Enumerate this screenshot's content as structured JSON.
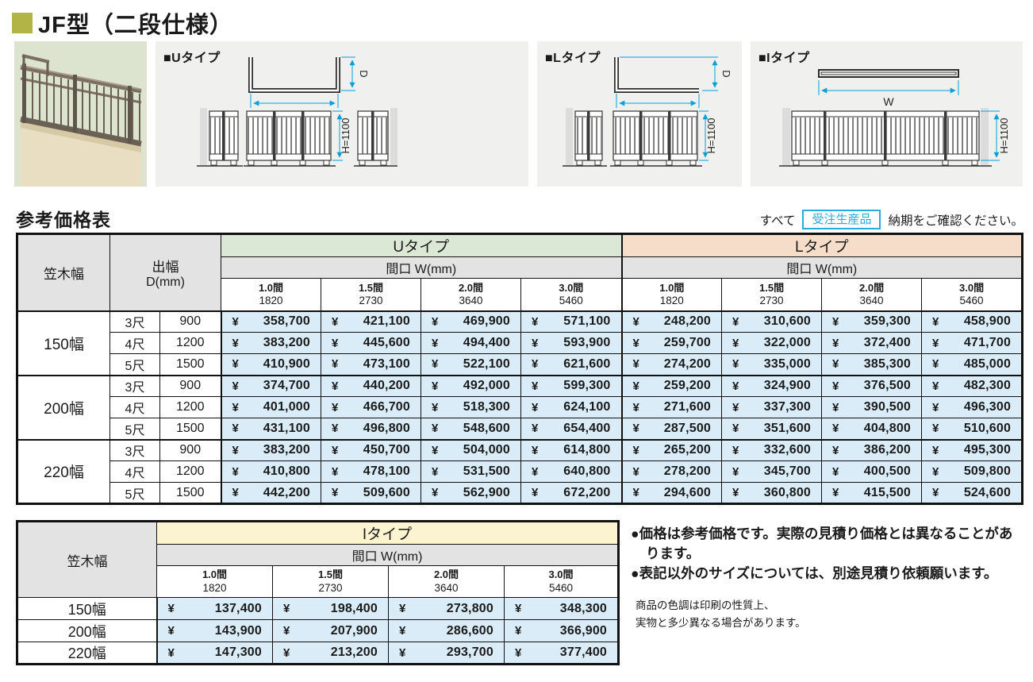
{
  "page": {
    "title": "JF型（二段仕様）"
  },
  "colors": {
    "accent_olive": "#b2b446",
    "badge_cyan": "#29abe2",
    "dimension_cyan": "#00a0dc",
    "u_header_green": "#dce8d6",
    "l_header_peach": "#f6ddc9",
    "i_header_cream": "#fcf3d1",
    "price_cell_blue": "#d9ecf7",
    "header_gray": "#e3e3e3",
    "panel_gray": "#f0f0ef"
  },
  "diagrams": {
    "w_label": "W",
    "d_label": "D",
    "h_label": "H=1100",
    "panels": [
      {
        "label": "■Uタイプ"
      },
      {
        "label": "■Lタイプ"
      },
      {
        "label": "■Iタイプ"
      }
    ]
  },
  "price_section": {
    "heading": "参考価格表",
    "note_prefix": "すべて",
    "badge": "受注生産品",
    "note_suffix": "納期をご確認ください。"
  },
  "main_table": {
    "currency": "¥",
    "header": {
      "kasagi": "笠木幅",
      "debaba_line1": "出幅",
      "debaba_line2": "D(mm)",
      "u_type": "Uタイプ",
      "l_type": "Lタイプ",
      "maguchi": "間口 W(mm)",
      "spans": [
        {
          "ken": "1.0間",
          "mm": "1820"
        },
        {
          "ken": "1.5間",
          "mm": "2730"
        },
        {
          "ken": "2.0間",
          "mm": "3640"
        },
        {
          "ken": "3.0間",
          "mm": "5460"
        }
      ]
    },
    "groups": [
      {
        "label": "150幅",
        "rows": [
          {
            "shaku": "3尺",
            "d": "900",
            "u": [
              "358,700",
              "421,100",
              "469,900",
              "571,100"
            ],
            "l": [
              "248,200",
              "310,600",
              "359,300",
              "458,900"
            ]
          },
          {
            "shaku": "4尺",
            "d": "1200",
            "u": [
              "383,200",
              "445,600",
              "494,400",
              "593,900"
            ],
            "l": [
              "259,700",
              "322,000",
              "372,400",
              "471,700"
            ]
          },
          {
            "shaku": "5尺",
            "d": "1500",
            "u": [
              "410,900",
              "473,100",
              "522,100",
              "621,600"
            ],
            "l": [
              "274,200",
              "335,000",
              "385,300",
              "485,000"
            ]
          }
        ]
      },
      {
        "label": "200幅",
        "rows": [
          {
            "shaku": "3尺",
            "d": "900",
            "u": [
              "374,700",
              "440,200",
              "492,000",
              "599,300"
            ],
            "l": [
              "259,200",
              "324,900",
              "376,500",
              "482,300"
            ]
          },
          {
            "shaku": "4尺",
            "d": "1200",
            "u": [
              "401,000",
              "466,700",
              "518,300",
              "624,100"
            ],
            "l": [
              "271,600",
              "337,300",
              "390,500",
              "496,300"
            ]
          },
          {
            "shaku": "5尺",
            "d": "1500",
            "u": [
              "431,100",
              "496,800",
              "548,600",
              "654,400"
            ],
            "l": [
              "287,500",
              "351,600",
              "404,800",
              "510,600"
            ]
          }
        ]
      },
      {
        "label": "220幅",
        "rows": [
          {
            "shaku": "3尺",
            "d": "900",
            "u": [
              "383,200",
              "450,700",
              "504,000",
              "614,800"
            ],
            "l": [
              "265,200",
              "332,600",
              "386,200",
              "495,300"
            ]
          },
          {
            "shaku": "4尺",
            "d": "1200",
            "u": [
              "410,800",
              "478,100",
              "531,500",
              "640,800"
            ],
            "l": [
              "278,200",
              "345,700",
              "400,500",
              "509,800"
            ]
          },
          {
            "shaku": "5尺",
            "d": "1500",
            "u": [
              "442,200",
              "509,600",
              "562,900",
              "672,200"
            ],
            "l": [
              "294,600",
              "360,800",
              "415,500",
              "524,600"
            ]
          }
        ]
      }
    ]
  },
  "i_table": {
    "header": {
      "kasagi": "笠木幅",
      "i_type": "Iタイプ",
      "maguchi": "間口 W(mm)",
      "spans": [
        {
          "ken": "1.0間",
          "mm": "1820"
        },
        {
          "ken": "1.5間",
          "mm": "2730"
        },
        {
          "ken": "2.0間",
          "mm": "3640"
        },
        {
          "ken": "3.0間",
          "mm": "5460"
        }
      ]
    },
    "rows": [
      {
        "label": "150幅",
        "prices": [
          "137,400",
          "198,400",
          "273,800",
          "348,300"
        ]
      },
      {
        "label": "200幅",
        "prices": [
          "143,900",
          "207,900",
          "286,600",
          "366,900"
        ]
      },
      {
        "label": "220幅",
        "prices": [
          "147,300",
          "213,200",
          "293,700",
          "377,400"
        ]
      }
    ]
  },
  "notes": {
    "bullets": [
      "●価格は参考価格です。実際の見積り価格とは異なることがあります。",
      "●表記以外のサイズについては、別途見積り依頼願います。"
    ],
    "small": [
      "商品の色調は印刷の性質上、",
      "実物と多少異なる場合があります。"
    ]
  }
}
